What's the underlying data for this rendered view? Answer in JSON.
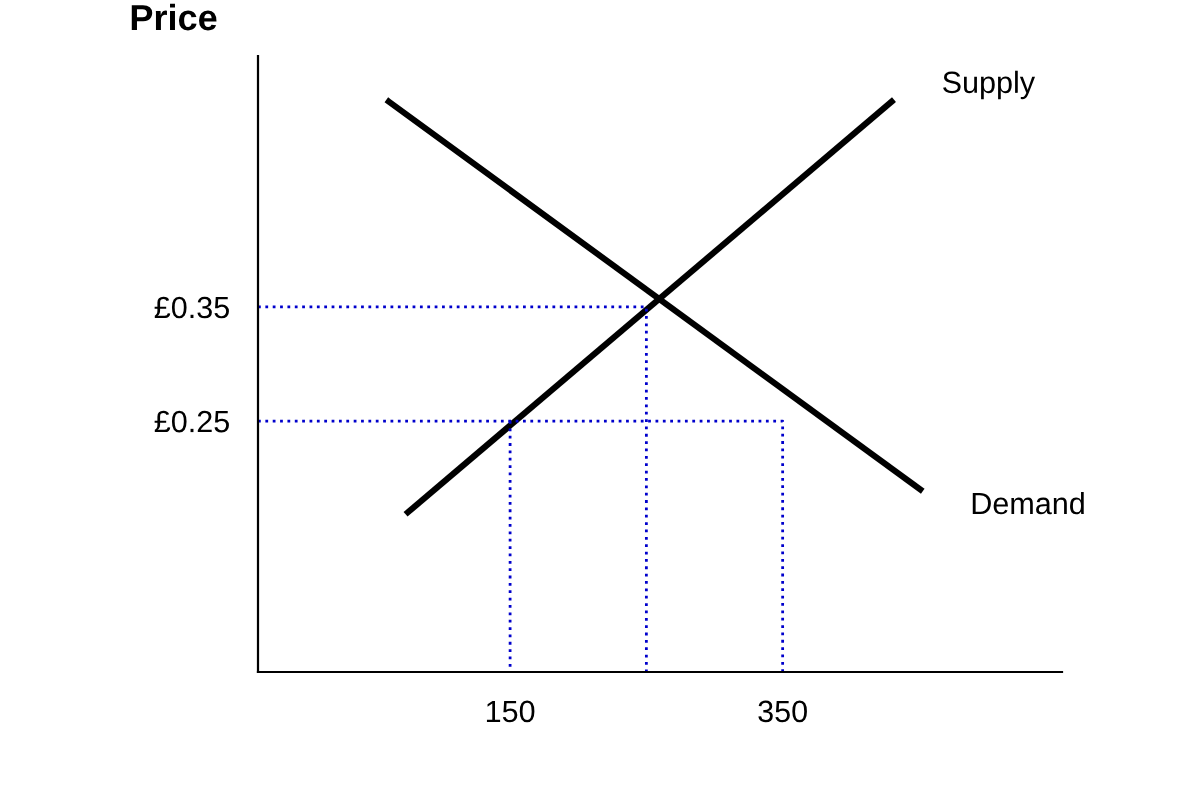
{
  "chart_data": {
    "type": "line",
    "ylabel": "Price",
    "series": [
      {
        "name": "Supply",
        "color": "#000000",
        "x": [
          75,
          430
        ],
        "values": [
          0.17,
          0.53
        ],
        "line_style": "solid"
      },
      {
        "name": "Demand",
        "color": "#000000",
        "x": [
          61,
          451
        ],
        "values": [
          0.53,
          0.19
        ],
        "line_style": "solid"
      },
      {
        "color": "#0000cc",
        "x": [
          -35,
          250,
          250
        ],
        "values": [
          0.35,
          0.35,
          0.03
        ],
        "line_style": "dotted"
      },
      {
        "color": "#0000cc",
        "x": [
          -35,
          350,
          350
        ],
        "values": [
          0.25,
          0.25,
          0.03
        ],
        "line_style": "dotted"
      },
      {
        "color": "#0000cc",
        "x": [
          150,
          150
        ],
        "values": [
          0.25,
          0.03
        ],
        "line_style": "dotted"
      }
    ],
    "xlim": [
      -35,
      555
    ],
    "ylim": [
      0.03,
      0.57
    ],
    "xticks": [
      150,
      350
    ],
    "yticks": [
      {
        "value": 0.25,
        "label": "£0.25"
      },
      {
        "value": 0.35,
        "label": "£0.35"
      }
    ],
    "grid": false,
    "legend": false,
    "marker": "none"
  }
}
